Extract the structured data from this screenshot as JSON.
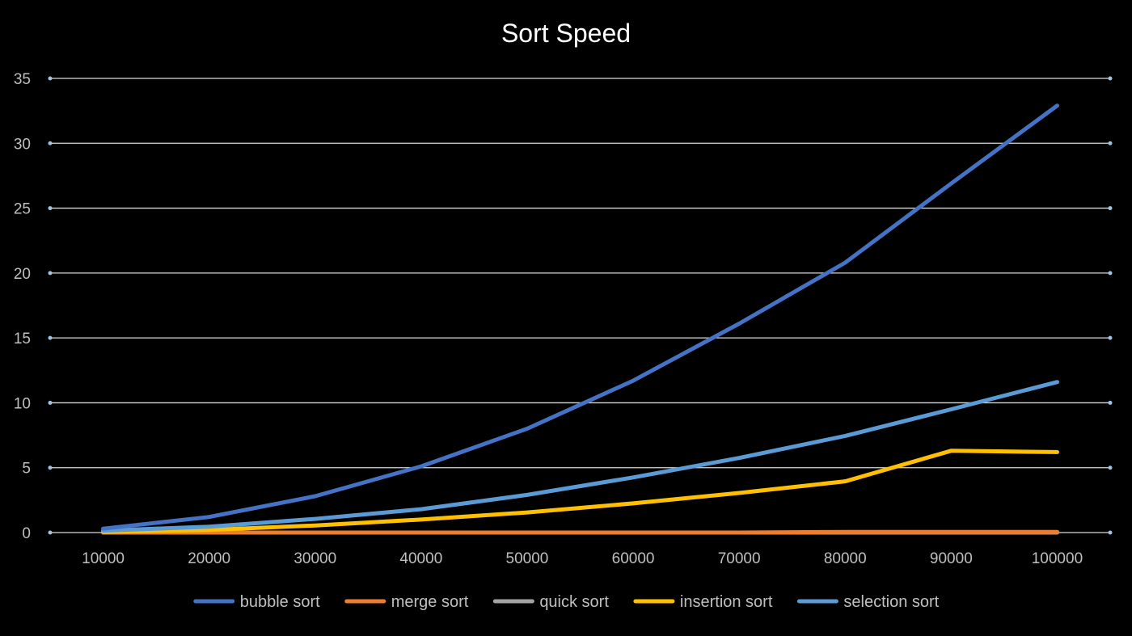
{
  "chart_data": {
    "type": "line",
    "title": "Sort Speed",
    "xlabel": "",
    "ylabel": "",
    "categories": [
      "10000",
      "20000",
      "30000",
      "40000",
      "50000",
      "60000",
      "70000",
      "80000",
      "90000",
      "100000"
    ],
    "ylim": [
      0,
      35
    ],
    "yticks": [
      0,
      5,
      10,
      15,
      20,
      25,
      30,
      35
    ],
    "grid": true,
    "legend_position": "bottom",
    "series": [
      {
        "name": "bubble sort",
        "color": "#4472C4",
        "values": [
          0.3,
          1.2,
          2.8,
          5.1,
          8.0,
          11.7,
          16.1,
          20.8,
          26.9,
          32.9
        ]
      },
      {
        "name": "merge sort",
        "color": "#ED7D31",
        "values": [
          0.0,
          0.0,
          0.0,
          0.0,
          0.0,
          0.0,
          0.0,
          0.05,
          0.05,
          0.05
        ]
      },
      {
        "name": "quick sort",
        "color": "#A5A5A5",
        "values": [
          0.0,
          0.0,
          0.0,
          0.0,
          0.0,
          0.0,
          0.0,
          0.0,
          0.0,
          0.0
        ]
      },
      {
        "name": "insertion sort",
        "color": "#FFC000",
        "values": [
          0.05,
          0.2,
          0.55,
          1.0,
          1.55,
          2.25,
          3.05,
          3.95,
          6.3,
          6.2
        ]
      },
      {
        "name": "selection sort",
        "color": "#5B9BD5",
        "values": [
          0.15,
          0.45,
          1.05,
          1.8,
          2.9,
          4.25,
          5.75,
          7.45,
          9.5,
          11.6
        ]
      }
    ]
  },
  "colors": {
    "background": "#000000",
    "gridline": "#D9D9D9",
    "axis_text": "#BFBFBF",
    "title_text": "#FFFFFF"
  }
}
